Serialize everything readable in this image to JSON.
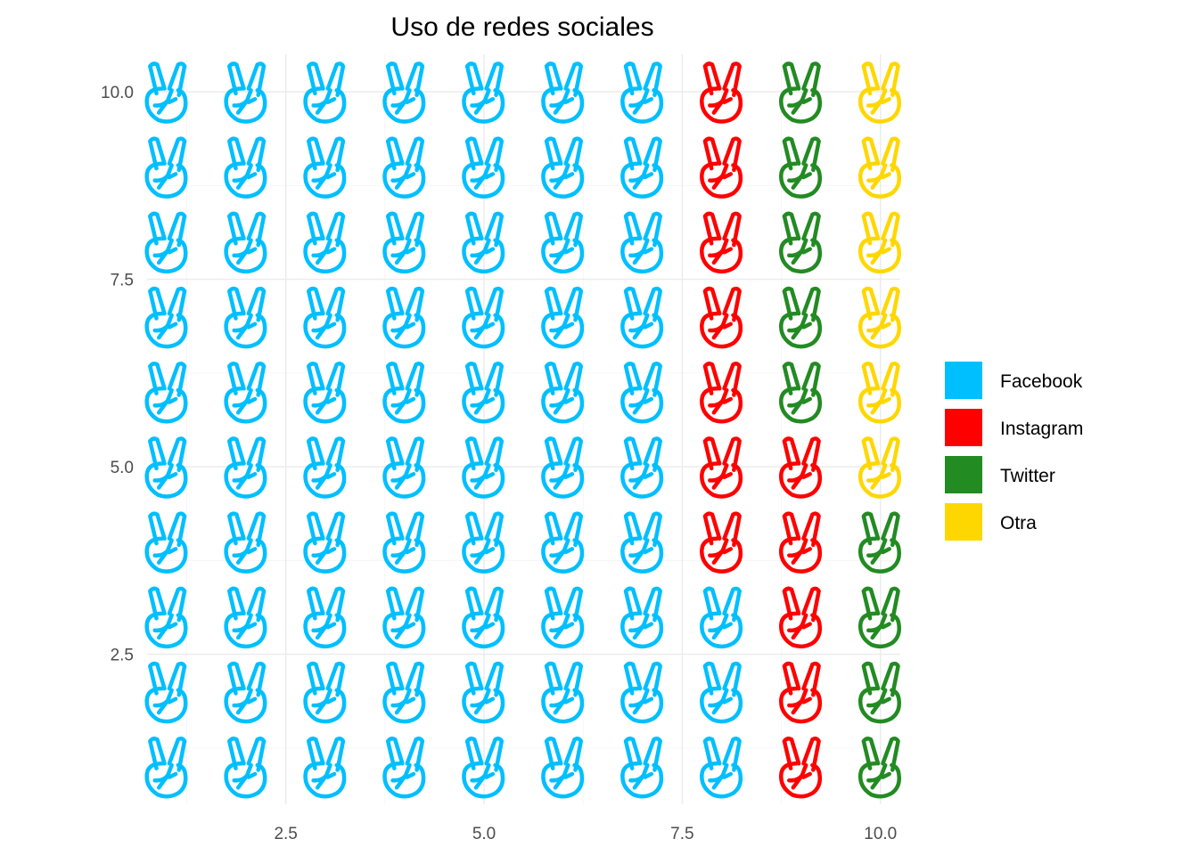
{
  "chart_data": {
    "type": "waffle",
    "title": "Uso de redes sociales",
    "xlabel": "",
    "ylabel": "",
    "xlim": [
      0.75,
      10.25
    ],
    "ylim": [
      0.5,
      10.5
    ],
    "x_ticks": [
      2.5,
      5.0,
      7.5,
      10.0
    ],
    "y_ticks": [
      2.5,
      5.0,
      7.5,
      10.0
    ],
    "x_tick_labels": [
      "2.5",
      "5.0",
      "7.5",
      "10.0"
    ],
    "y_tick_labels": [
      "2.5",
      "5.0",
      "7.5",
      "10.0"
    ],
    "grid": true,
    "legend_position": "right",
    "icon": "victory-hand-icon",
    "columns": 10,
    "rows": 10,
    "fill_order": "column-wise from bottom-left",
    "series": [
      {
        "name": "Facebook",
        "count": 73,
        "color": "#00BFFF"
      },
      {
        "name": "Instagram",
        "count": 12,
        "color": "#FF0000"
      },
      {
        "name": "Twitter",
        "count": 9,
        "color": "#228B22"
      },
      {
        "name": "Otra",
        "count": 6,
        "color": "#FFD700"
      }
    ]
  }
}
